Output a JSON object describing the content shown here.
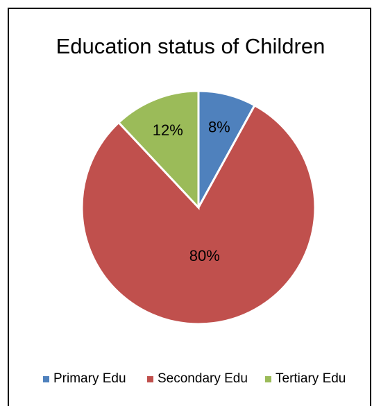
{
  "chart_data": {
    "type": "pie",
    "title": "Education status of Children",
    "categories": [
      "Primary Edu",
      "Secondary Edu",
      "Tertiary Edu"
    ],
    "values": [
      8,
      80,
      12
    ],
    "data_labels": [
      "8%",
      "80%",
      "12%"
    ],
    "colors": [
      "#4F81BD",
      "#C0504D",
      "#9BBB59"
    ],
    "start_angle": "12 o'clock, clockwise",
    "legend_position": "bottom"
  }
}
